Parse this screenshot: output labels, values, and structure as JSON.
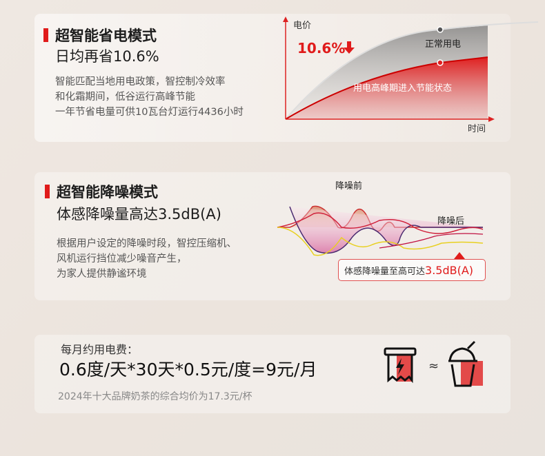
{
  "section1": {
    "title_line1": "超智能省电模式",
    "title_line2": "日均再省10.6%",
    "desc": [
      "智能匹配当地用电政策，智控制冷效率",
      "和化霜期间，低谷运行高峰节能",
      "一年节省电量可供10瓦台灯运行4436小时"
    ],
    "chart": {
      "y_label": "电价",
      "x_label": "时间",
      "saving": "10.6%",
      "normal_label": "正常用电",
      "peak_label": "用电高峰期进入节能状态"
    }
  },
  "section2": {
    "title_line1": "超智能降噪模式",
    "title_line2": "体感降噪量高达3.5dB(A)",
    "desc": [
      "根据用户设定的降噪时段，智控压缩机、",
      "风机运行挡位减少噪音产生，",
      "为家人提供静谧环境"
    ],
    "chart": {
      "before_label": "降噪前",
      "after_label": "降噪后",
      "callout_text": "体感降噪量至高可达",
      "callout_value": "3.5dB(A)"
    }
  },
  "section3": {
    "label": "每月约用电费：",
    "formula": "0.6度/天*30天*0.5元/度=9元/月",
    "note": "2024年十大品牌奶茶的综合均价为17.3元/杯",
    "approx": "≈"
  },
  "colors": {
    "accent": "#e01b1b",
    "text": "#1c1c1c",
    "muted": "#555555"
  }
}
